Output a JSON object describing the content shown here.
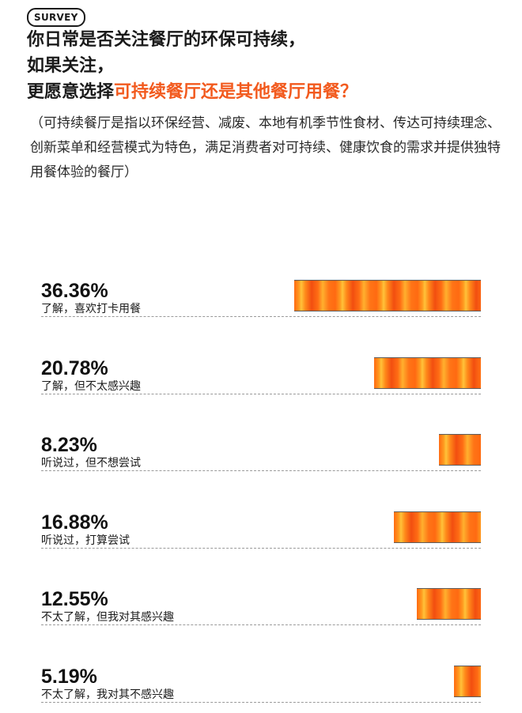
{
  "badge": "SURVEY",
  "question": {
    "line1": "你日常是否关注餐厅的环保可持续，",
    "line2": "如果关注，",
    "line3_prefix": "更愿意选择",
    "line3_highlight": "可持续餐厅还是其他餐厅用餐？"
  },
  "note": "（可持续餐厅是指以环保经营、减废、本地有机季节性食材、传达可持续理念、创新菜单和经营模式为特色，满足消费者对可持续、健康饮食的需求并提供独特用餐体验的餐厅）",
  "colors": {
    "accent": "#f25a1e",
    "bar": "#ff7a18"
  },
  "chart_data": {
    "type": "bar",
    "orientation": "horizontal",
    "unit": "%",
    "categories": [
      "了解，喜欢打卡用餐",
      "了解，但不太感兴趣",
      "听说过，但不想尝试",
      "听说过，打算尝试",
      "不太了解，但我对其感兴趣",
      "不太了解，我对其不感兴趣"
    ],
    "values": [
      36.36,
      20.78,
      8.23,
      16.88,
      12.55,
      5.19
    ],
    "value_labels": [
      "36.36%",
      "20.78%",
      "8.23%",
      "16.88%",
      "12.55%",
      "5.19%"
    ]
  }
}
